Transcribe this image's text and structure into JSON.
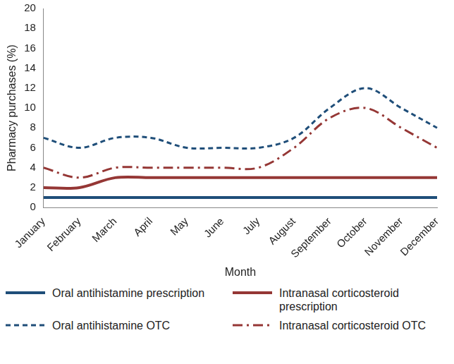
{
  "chart_data": {
    "type": "line",
    "x_label": "Month",
    "y_label": "Pharmacy purchases (%)",
    "categories": [
      "January",
      "February",
      "March",
      "April",
      "May",
      "June",
      "July",
      "August",
      "September",
      "October",
      "November",
      "December"
    ],
    "series": [
      {
        "name": "Oral antihistamine prescription",
        "color": "#1f4e79",
        "line_style": "solid",
        "values": [
          1,
          1,
          1,
          1,
          1,
          1,
          1,
          1,
          1,
          1,
          1,
          1
        ]
      },
      {
        "name": "Intranasal corticosteroid prescription",
        "color": "#953735",
        "line_style": "solid",
        "values": [
          2,
          2,
          3,
          3,
          3,
          3,
          3,
          3,
          3,
          3,
          3,
          3
        ]
      },
      {
        "name": "Oral antihistamine OTC",
        "color": "#1f4e79",
        "line_style": "dashed",
        "values": [
          7,
          6,
          7,
          7,
          6,
          6,
          6,
          7,
          10,
          12,
          10,
          8
        ]
      },
      {
        "name": "Intranasal corticosteroid OTC",
        "color": "#953735",
        "line_style": "dashdot",
        "values": [
          4,
          3,
          4,
          4,
          4,
          4,
          4,
          6,
          9,
          10,
          8,
          6
        ]
      }
    ],
    "ylim": [
      0,
      20
    ],
    "yticks": [
      0,
      2,
      4,
      6,
      8,
      10,
      12,
      14,
      16,
      18,
      20
    ],
    "grid": false,
    "legend": "bottom"
  }
}
